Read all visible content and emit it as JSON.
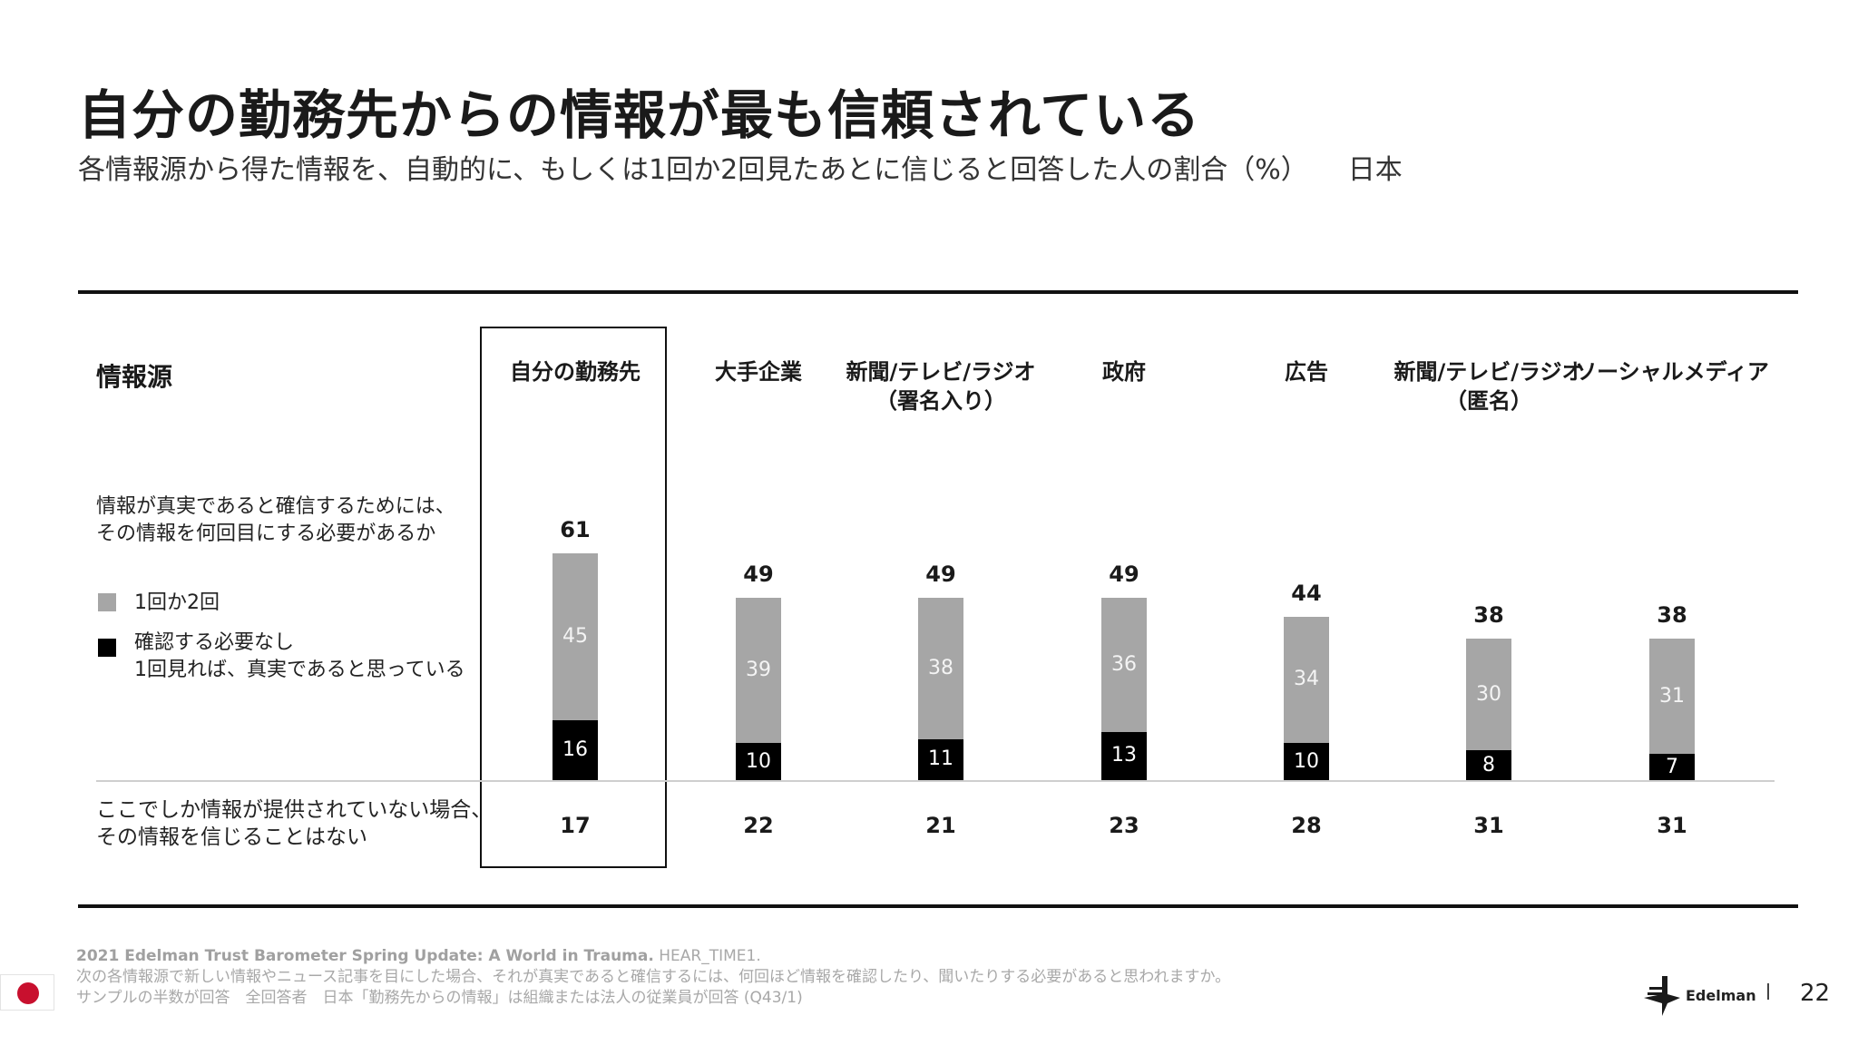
{
  "title": "自分の勤務先からの情報が最も信頼されている",
  "subtitle": "各情報源から得た情報を、自動的に、もしくは1回か2回見たあとに信じると回答した人の割合（%）",
  "country": "日本",
  "row_header": "情報源",
  "question": [
    "情報が真実であると確信するためには、",
    "その情報を何回目にする必要があるか"
  ],
  "legend": {
    "light": "1回か2回",
    "dark_line1": "確認する必要なし",
    "dark_line2": "1回見れば、真実であると思っている"
  },
  "bottom_row_label": [
    "ここでしか情報が提供されていない場合、",
    "その情報を信じることはない"
  ],
  "colors": {
    "light": "#a6a6a6",
    "dark": "#000000",
    "flag_red": "#c8102e"
  },
  "chart_data": {
    "type": "bar",
    "stacked": true,
    "title": "自分の勤務先からの情報が最も信頼されている",
    "categories": [
      "自分の勤務先",
      "大手企業",
      "新聞/テレビ/ラジオ\n（署名入り）",
      "政府",
      "広告",
      "新聞/テレビ/ラジオ\n（匿名）",
      "ソーシャルメディア"
    ],
    "series": [
      {
        "name": "確認する必要なし 1回見れば、真実であると思っている",
        "values": [
          16,
          10,
          11,
          13,
          10,
          8,
          7
        ]
      },
      {
        "name": "1回か2回",
        "values": [
          45,
          39,
          38,
          36,
          34,
          30,
          31
        ]
      }
    ],
    "totals": [
      61,
      49,
      49,
      49,
      44,
      38,
      38
    ],
    "never_believe": [
      17,
      22,
      21,
      23,
      28,
      31,
      31
    ],
    "highlighted_category": "自分の勤務先",
    "ylim": [
      0,
      61
    ]
  },
  "footer": {
    "source_bold": "2021 Edelman Trust Barometer Spring Update: A World in Trauma.",
    "source_code": " HEAR_TIME1.",
    "question_text": "次の各情報源で新しい情報やニュース記事を目にした場合、それが真実であると確信するには、何回ほど情報を確認したり、聞いたりする必要があると思われますか。",
    "sample": "サンプルの半数が回答　全回答者　日本「勤務先からの情報」は組織または法人の従業員が回答 (Q43/1)",
    "brand": "Edelman",
    "page": "22"
  }
}
